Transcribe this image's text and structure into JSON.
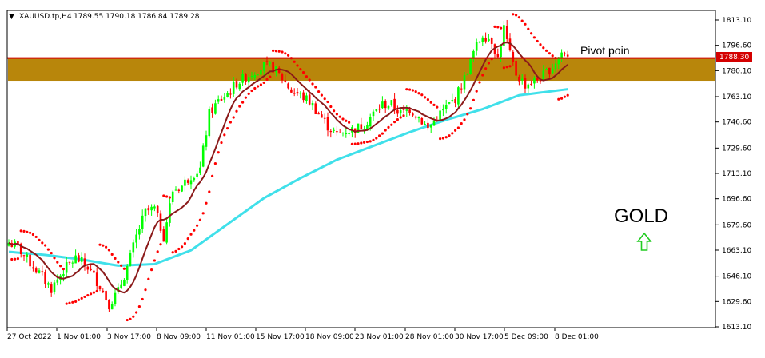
{
  "header": {
    "arrow": "▼",
    "symbol": "XAUUSD.tp,H4",
    "ohlc": "1789.55 1790.18 1786.84 1789.28"
  },
  "annotations": {
    "pivot_label": "Pivot poin",
    "gold_label": "GOLD",
    "current_price_badge": "1788.30"
  },
  "colors": {
    "background": "#ffffff",
    "bull_candle": "#00ff00",
    "bear_candle": "#ff0000",
    "sma_fast": "#8b1a1a",
    "sma_slow": "#40e0ea",
    "parabolic_sar": "#ff0000",
    "zone_fill": "#b8860b",
    "pivot_line": "#d40000",
    "up_arrow": "#22cc22"
  },
  "icons": {
    "up_arrow": "up-arrow-icon",
    "menu_arrow": "dropdown-triangle-icon"
  },
  "chart_data": {
    "type": "candlestick",
    "y_axis_ticks": [
      "1813.10",
      "1796.60",
      "1780.10",
      "1763.10",
      "1746.60",
      "1729.60",
      "1713.10",
      "1696.60",
      "1679.60",
      "1663.10",
      "1646.10",
      "1629.60",
      "1613.10"
    ],
    "ylim": [
      1613.1,
      1813.1
    ],
    "x_axis_ticks": [
      "27 Oct 2022",
      "1 Nov 01:00",
      "3 Nov 17:00",
      "8 Nov 09:00",
      "11 Nov 01:00",
      "15 Nov 17:00",
      "18 Nov 09:00",
      "23 Nov 01:00",
      "28 Nov 01:00",
      "30 Nov 17:00",
      "5 Dec 09:00",
      "8 Dec 01:00"
    ],
    "pivot_level": 1788.3,
    "resistance_zone": [
      1773.5,
      1788.3
    ],
    "close_anchors": [
      [
        0,
        1668
      ],
      [
        3,
        1665
      ],
      [
        6,
        1657
      ],
      [
        10,
        1648
      ],
      [
        14,
        1638
      ],
      [
        18,
        1650
      ],
      [
        22,
        1658
      ],
      [
        26,
        1652
      ],
      [
        30,
        1640
      ],
      [
        33,
        1628
      ],
      [
        36,
        1636
      ],
      [
        39,
        1652
      ],
      [
        42,
        1672
      ],
      [
        45,
        1688
      ],
      [
        48,
        1690
      ],
      [
        51,
        1672
      ],
      [
        54,
        1702
      ],
      [
        57,
        1705
      ],
      [
        60,
        1712
      ],
      [
        63,
        1716
      ],
      [
        66,
        1752
      ],
      [
        69,
        1760
      ],
      [
        72,
        1765
      ],
      [
        75,
        1772
      ],
      [
        78,
        1776
      ],
      [
        81,
        1780
      ],
      [
        84,
        1783
      ],
      [
        87,
        1782
      ],
      [
        90,
        1775
      ],
      [
        93,
        1767
      ],
      [
        96,
        1764
      ],
      [
        99,
        1760
      ],
      [
        102,
        1752
      ],
      [
        105,
        1744
      ],
      [
        108,
        1738
      ],
      [
        111,
        1741
      ],
      [
        114,
        1742
      ],
      [
        117,
        1745
      ],
      [
        120,
        1752
      ],
      [
        123,
        1758
      ],
      [
        126,
        1758
      ],
      [
        129,
        1752
      ],
      [
        132,
        1755
      ],
      [
        135,
        1750
      ],
      [
        138,
        1742
      ],
      [
        141,
        1750
      ],
      [
        144,
        1756
      ],
      [
        147,
        1762
      ],
      [
        150,
        1775
      ],
      [
        153,
        1792
      ],
      [
        156,
        1804
      ],
      [
        159,
        1800
      ],
      [
        161,
        1788
      ],
      [
        163,
        1808
      ],
      [
        165,
        1790
      ],
      [
        167,
        1778
      ],
      [
        170,
        1771
      ],
      [
        173,
        1773
      ],
      [
        176,
        1777
      ],
      [
        179,
        1783
      ],
      [
        182,
        1792
      ],
      [
        184,
        1789.28
      ]
    ],
    "sma_slow_anchors": [
      [
        0,
        1662
      ],
      [
        12,
        1660
      ],
      [
        24,
        1657
      ],
      [
        36,
        1653
      ],
      [
        48,
        1654
      ],
      [
        60,
        1663
      ],
      [
        72,
        1680
      ],
      [
        84,
        1697
      ],
      [
        96,
        1710
      ],
      [
        108,
        1722
      ],
      [
        120,
        1731
      ],
      [
        132,
        1740
      ],
      [
        144,
        1748
      ],
      [
        156,
        1755
      ],
      [
        168,
        1764
      ],
      [
        184,
        1768
      ]
    ]
  }
}
